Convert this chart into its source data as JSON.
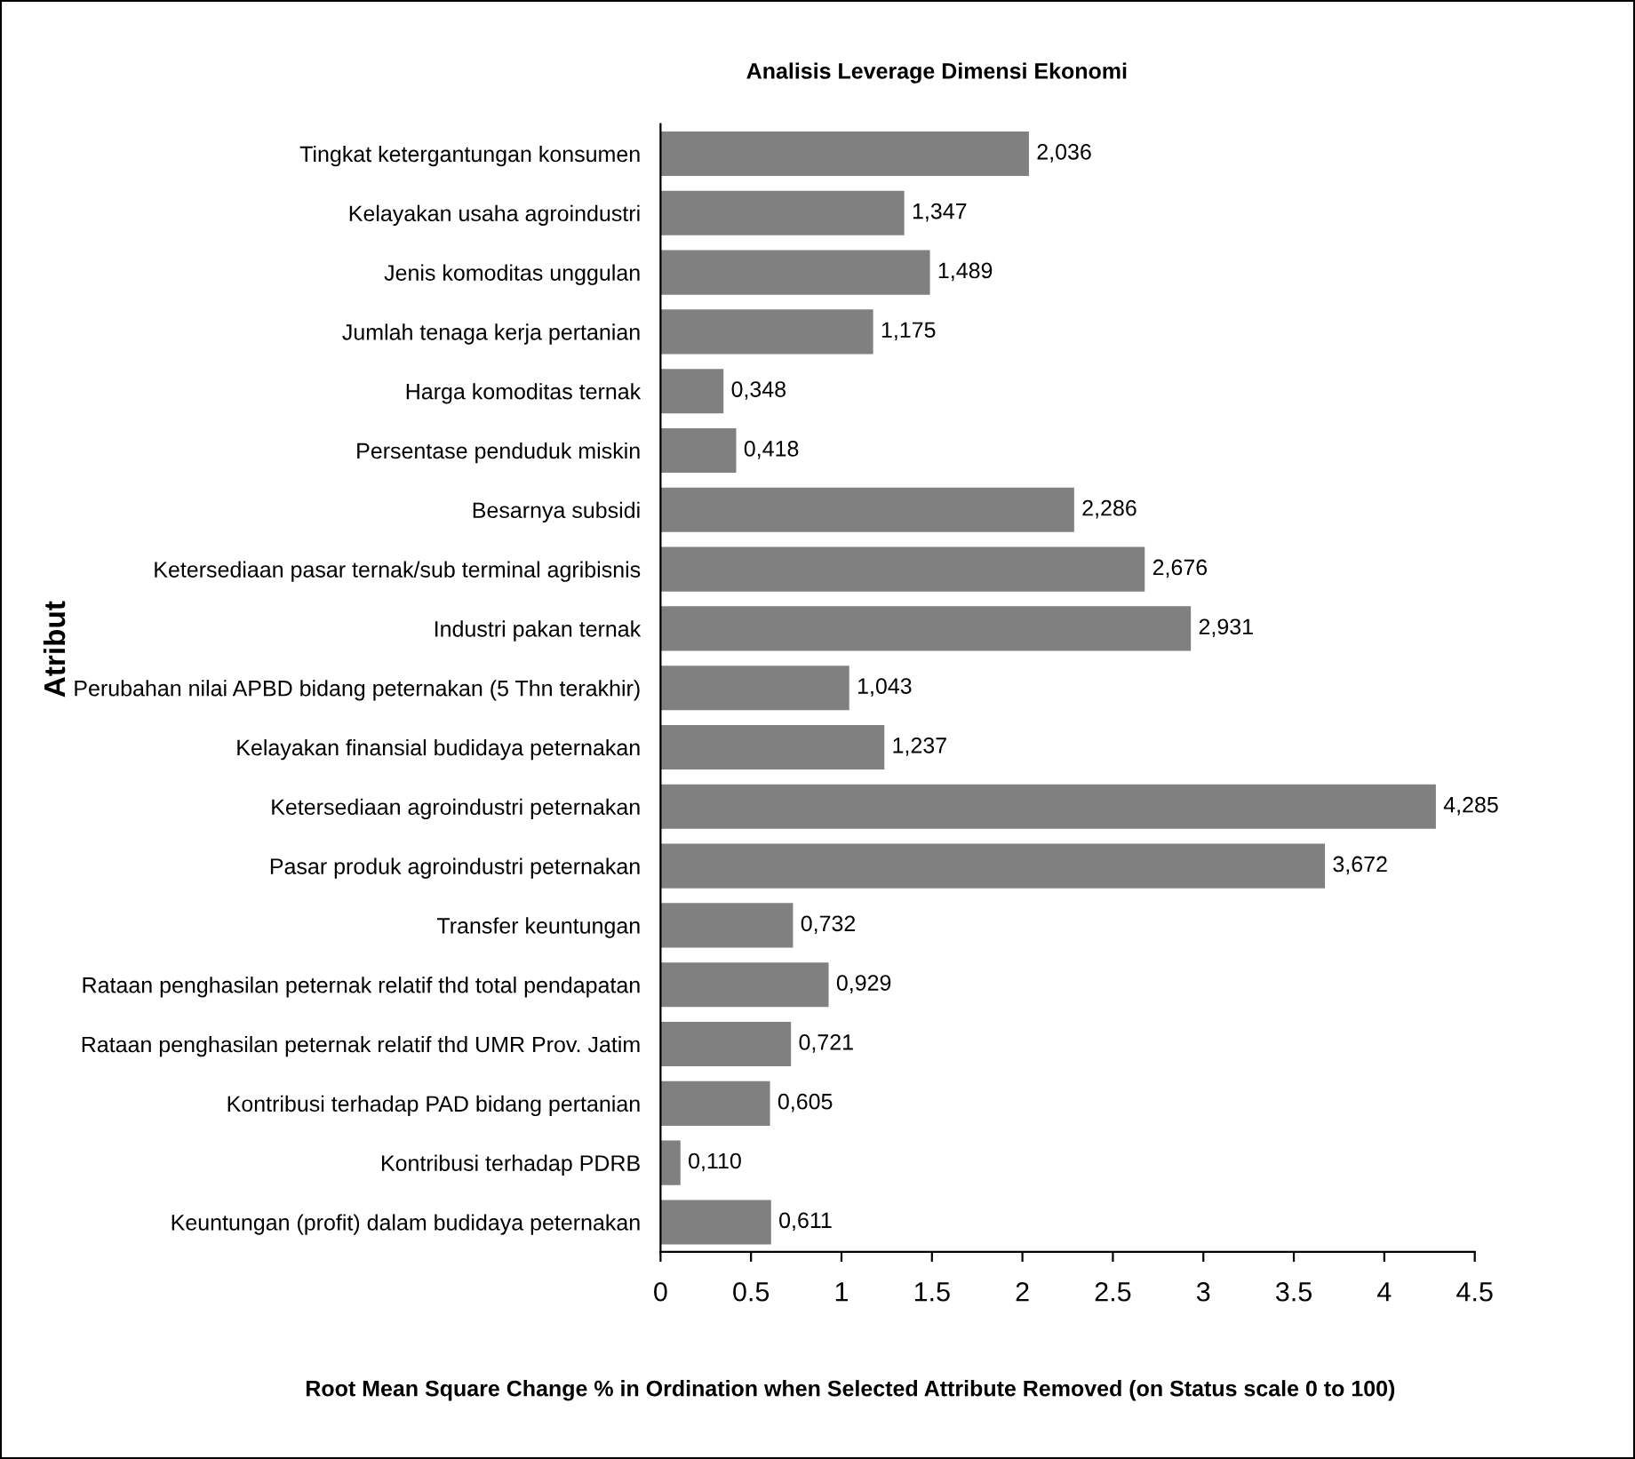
{
  "chart_data": {
    "type": "bar",
    "orientation": "horizontal",
    "title": "Analisis Leverage Dimensi Ekonomi",
    "xlabel": "Root Mean Square Change % in Ordination when Selected Attribute Removed (on Status scale 0 to 100)",
    "ylabel": "Atribut",
    "categories": [
      "Tingkat ketergantungan konsumen",
      "Kelayakan usaha agroindustri",
      "Jenis komoditas unggulan",
      "Jumlah tenaga kerja pertanian",
      "Harga komoditas ternak",
      "Persentase penduduk miskin",
      "Besarnya subsidi",
      "Ketersediaan pasar ternak/sub terminal agribisnis",
      "Industri pakan ternak",
      "Perubahan nilai APBD bidang peternakan (5 Thn terakhir)",
      "Kelayakan finansial budidaya peternakan",
      "Ketersediaan agroindustri peternakan",
      "Pasar produk agroindustri peternakan",
      "Transfer keuntungan",
      "Rataan penghasilan peternak relatif thd total pendapatan",
      "Rataan penghasilan peternak relatif thd UMR Prov. Jatim",
      "Kontribusi terhadap PAD bidang pertanian",
      "Kontribusi terhadap PDRB",
      "Keuntungan (profit) dalam budidaya peternakan"
    ],
    "values": [
      2.036,
      1.347,
      1.489,
      1.175,
      0.348,
      0.418,
      2.286,
      2.676,
      2.931,
      1.043,
      1.237,
      4.285,
      3.672,
      0.732,
      0.929,
      0.721,
      0.605,
      0.11,
      0.611
    ],
    "value_labels": [
      "2,036",
      "1,347",
      "1,489",
      "1,175",
      "0,348",
      "0,418",
      "2,286",
      "2,676",
      "2,931",
      "1,043",
      "1,237",
      "4,285",
      "3,672",
      "0,732",
      "0,929",
      "0,721",
      "0,605",
      "0,110",
      "0,611"
    ],
    "color": "#808080",
    "xlim": [
      0,
      4.5
    ],
    "xticks": [
      0,
      0.5,
      1,
      1.5,
      2,
      2.5,
      3,
      3.5,
      4,
      4.5
    ],
    "grid": false,
    "legend": false
  }
}
